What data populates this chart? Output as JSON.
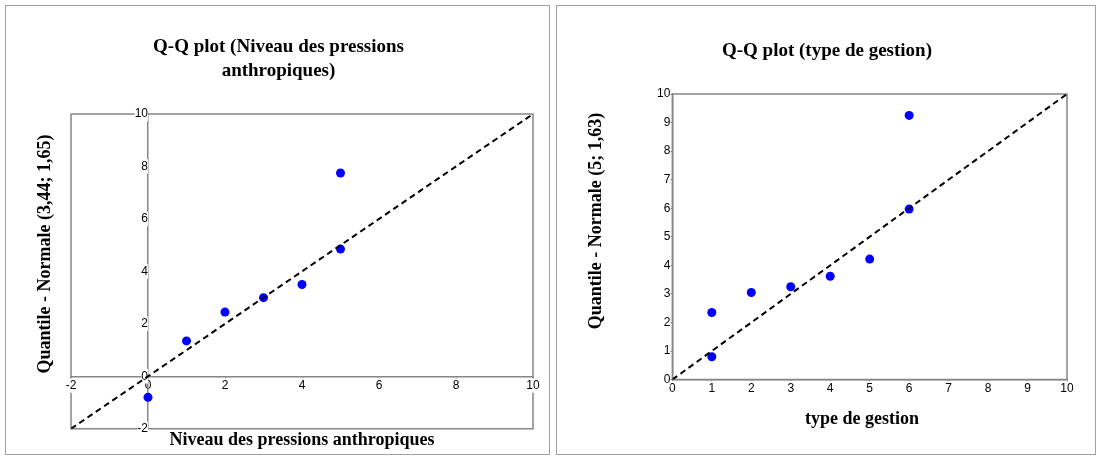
{
  "chart_data": [
    {
      "type": "scatter",
      "title": "Q-Q plot (Niveau des pressions anthropiques)",
      "xlabel": "Niveau des pressions anthropiques",
      "ylabel": "Quantile - Normale (3,44; 1,65)",
      "xlim": [
        -2,
        10
      ],
      "ylim": [
        -2,
        10
      ],
      "xticks": [
        -2,
        0,
        2,
        4,
        6,
        8,
        10
      ],
      "yticks": [
        -2,
        0,
        2,
        4,
        6,
        8,
        10
      ],
      "grid": false,
      "legend": false,
      "series": [
        {
          "type": "line",
          "color": "#000000",
          "line_style": "dashed",
          "marker": "none",
          "x": [
            -2,
            10
          ],
          "values": [
            -2,
            10
          ]
        },
        {
          "type": "scatter",
          "color": "#0000ff",
          "marker": "circle",
          "x": [
            0,
            1,
            2,
            3,
            4,
            5,
            5
          ],
          "values": [
            -0.8,
            1.35,
            2.45,
            3.0,
            3.5,
            4.85,
            7.75
          ]
        }
      ]
    },
    {
      "type": "scatter",
      "title": "Q-Q plot (type de gestion)",
      "xlabel": "type de gestion",
      "ylabel": "Quantile - Normale (5; 1,63)",
      "xlim": [
        0,
        10
      ],
      "ylim": [
        0,
        10
      ],
      "xticks": [
        0,
        1,
        2,
        3,
        4,
        5,
        6,
        7,
        8,
        9,
        10
      ],
      "yticks": [
        0,
        1,
        2,
        3,
        4,
        5,
        6,
        7,
        8,
        9,
        10
      ],
      "grid": false,
      "legend": false,
      "series": [
        {
          "type": "line",
          "color": "#000000",
          "line_style": "dashed",
          "marker": "none",
          "x": [
            0,
            10
          ],
          "values": [
            0,
            10
          ]
        },
        {
          "type": "scatter",
          "color": "#0000ff",
          "marker": "circle",
          "x": [
            1,
            1,
            2,
            3,
            4,
            5,
            6,
            6
          ],
          "values": [
            0.8,
            2.35,
            3.05,
            3.25,
            3.62,
            4.22,
            5.97,
            9.25
          ]
        }
      ]
    }
  ]
}
